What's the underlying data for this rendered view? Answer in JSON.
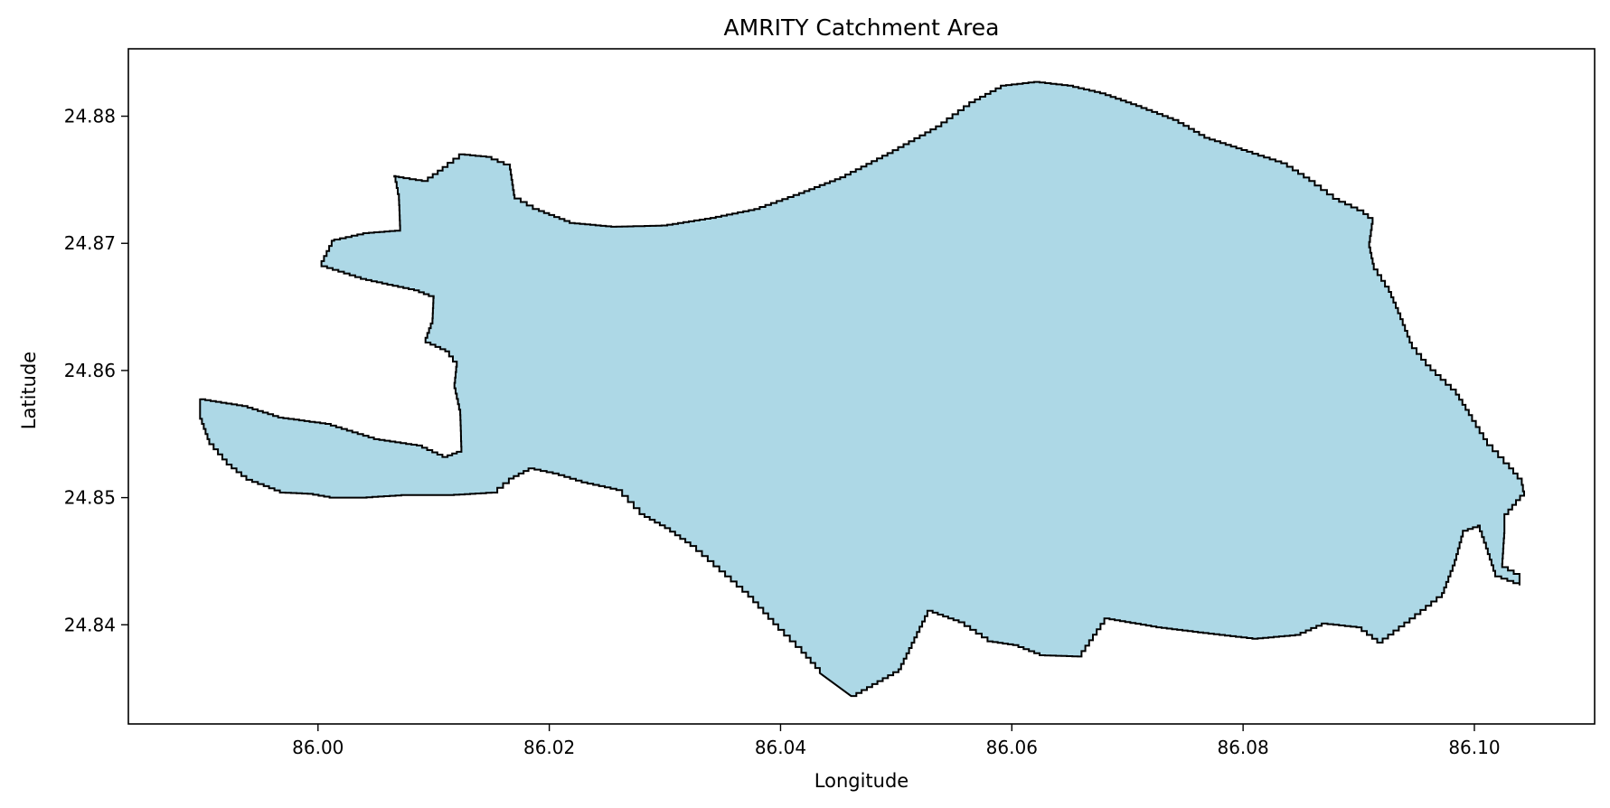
{
  "chart_data": {
    "type": "map",
    "title": "AMRITY Catchment Area",
    "xlabel": "Longitude",
    "ylabel": "Latitude",
    "x_ticks": [
      86.0,
      86.02,
      86.04,
      86.06,
      86.08,
      86.1
    ],
    "y_ticks": [
      24.84,
      24.85,
      24.86,
      24.87,
      24.88
    ],
    "xlim": [
      85.9836,
      86.1104
    ],
    "ylim": [
      24.8322,
      24.8853
    ],
    "grid": false,
    "legend": "none",
    "fill_color": "#add8e6",
    "edge_color": "#000000",
    "boundary": [
      [
        86.0461,
        24.8344
      ],
      [
        86.0502,
        24.8365
      ],
      [
        86.0527,
        24.8411
      ],
      [
        86.0554,
        24.8402
      ],
      [
        86.0579,
        24.8387
      ],
      [
        86.0601,
        24.8384
      ],
      [
        86.0624,
        24.8376
      ],
      [
        86.0657,
        24.8375
      ],
      [
        86.068,
        24.8405
      ],
      [
        86.0725,
        24.8398
      ],
      [
        86.077,
        24.8393
      ],
      [
        86.0808,
        24.8389
      ],
      [
        86.0845,
        24.8392
      ],
      [
        86.0868,
        24.8401
      ],
      [
        86.0898,
        24.8398
      ],
      [
        86.0916,
        24.8386
      ],
      [
        86.0944,
        24.8405
      ],
      [
        86.0972,
        24.8425
      ],
      [
        86.0983,
        24.8451
      ],
      [
        86.099,
        24.8474
      ],
      [
        86.1003,
        24.8478
      ],
      [
        86.101,
        24.846
      ],
      [
        86.1018,
        24.8438
      ],
      [
        86.1039,
        24.8431
      ],
      [
        86.1039,
        24.844
      ],
      [
        86.1024,
        24.8448
      ],
      [
        86.1026,
        24.8476
      ],
      [
        86.1026,
        24.8487
      ],
      [
        86.1036,
        24.8498
      ],
      [
        86.1043,
        24.8505
      ],
      [
        86.1041,
        24.8515
      ],
      [
        86.103,
        24.8527
      ],
      [
        86.1011,
        24.8546
      ],
      [
        86.0998,
        24.8565
      ],
      [
        86.0984,
        24.8585
      ],
      [
        86.0962,
        24.8604
      ],
      [
        86.0946,
        24.8622
      ],
      [
        86.0936,
        24.8645
      ],
      [
        86.0926,
        24.8666
      ],
      [
        86.0913,
        24.8684
      ],
      [
        86.0909,
        24.8701
      ],
      [
        86.0912,
        24.872
      ],
      [
        86.0904,
        24.8726
      ],
      [
        86.0883,
        24.8735
      ],
      [
        86.0862,
        24.8749
      ],
      [
        86.0838,
        24.8763
      ],
      [
        86.0808,
        24.8772
      ],
      [
        86.0771,
        24.8783
      ],
      [
        86.0744,
        24.8797
      ],
      [
        86.0712,
        24.8808
      ],
      [
        86.0681,
        24.8818
      ],
      [
        86.0653,
        24.8824
      ],
      [
        86.0624,
        24.8827
      ],
      [
        86.0595,
        24.8824
      ],
      [
        86.0568,
        24.8811
      ],
      [
        86.0539,
        24.8792
      ],
      [
        86.0497,
        24.8771
      ],
      [
        86.0456,
        24.8752
      ],
      [
        86.0416,
        24.8738
      ],
      [
        86.0382,
        24.8727
      ],
      [
        86.0344,
        24.872
      ],
      [
        86.0302,
        24.8714
      ],
      [
        86.0258,
        24.8713
      ],
      [
        86.0222,
        24.8716
      ],
      [
        86.0191,
        24.8727
      ],
      [
        86.017,
        24.8738
      ],
      [
        86.0166,
        24.8762
      ],
      [
        86.015,
        24.8768
      ],
      [
        86.0127,
        24.877
      ],
      [
        86.0112,
        24.876
      ],
      [
        86.0095,
        24.8749
      ],
      [
        86.0074,
        24.8752
      ],
      [
        86.0066,
        24.8753
      ],
      [
        86.007,
        24.8734
      ],
      [
        86.0071,
        24.871
      ],
      [
        86.0044,
        24.8708
      ],
      [
        86.0014,
        24.8702
      ],
      [
        86.0003,
        24.8682
      ],
      [
        86.0037,
        24.8672
      ],
      [
        86.0083,
        24.8663
      ],
      [
        86.01,
        24.8657
      ],
      [
        86.0099,
        24.8637
      ],
      [
        86.0093,
        24.8622
      ],
      [
        86.011,
        24.8615
      ],
      [
        86.012,
        24.8603
      ],
      [
        86.0118,
        24.8586
      ],
      [
        86.0123,
        24.8565
      ],
      [
        86.0124,
        24.8536
      ],
      [
        86.0112,
        24.8532
      ],
      [
        86.009,
        24.8541
      ],
      [
        86.0053,
        24.8546
      ],
      [
        86.0011,
        24.8558
      ],
      [
        85.997,
        24.8563
      ],
      [
        85.9939,
        24.8572
      ],
      [
        85.9898,
        24.8578
      ],
      [
        85.9898,
        24.8562
      ],
      [
        85.9906,
        24.8542
      ],
      [
        85.9921,
        24.8526
      ],
      [
        85.9938,
        24.8514
      ],
      [
        85.9953,
        24.8509
      ],
      [
        85.9967,
        24.8504
      ],
      [
        85.9991,
        24.8503
      ],
      [
        86.001,
        24.85
      ],
      [
        86.0037,
        24.85
      ],
      [
        86.0072,
        24.8502
      ],
      [
        86.0113,
        24.8502
      ],
      [
        86.015,
        24.8504
      ],
      [
        86.0165,
        24.8515
      ],
      [
        86.0182,
        24.8523
      ],
      [
        86.0203,
        24.8519
      ],
      [
        86.0228,
        24.8512
      ],
      [
        86.0258,
        24.8506
      ],
      [
        86.0278,
        24.8487
      ],
      [
        86.03,
        24.8476
      ],
      [
        86.0322,
        24.8462
      ],
      [
        86.0347,
        24.8442
      ],
      [
        86.0372,
        24.8422
      ],
      [
        86.0398,
        24.8396
      ],
      [
        86.0418,
        24.8378
      ],
      [
        86.0434,
        24.8362
      ]
    ]
  }
}
